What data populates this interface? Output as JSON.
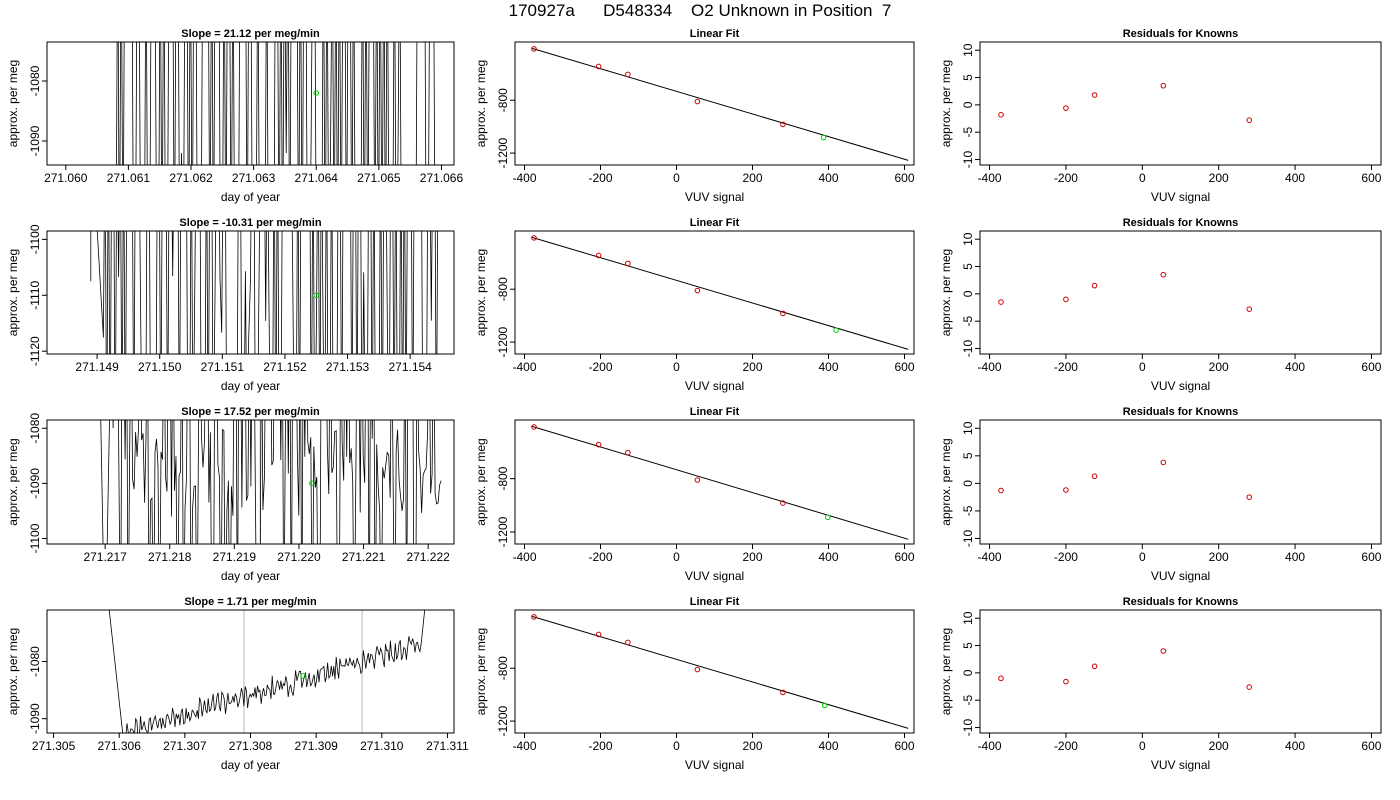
{
  "page": {
    "title": "170927a      D548334    O2 Unknown in Position  7"
  },
  "chart_data": [
    {
      "type": "line",
      "panel": "time-series-1",
      "title": "Slope =  21.12  per meg/min",
      "xlabel": "day of year",
      "ylabel": "approx. per meg",
      "xlim": [
        271.0597,
        271.0662
      ],
      "ylim": [
        -1094,
        -1073.5
      ],
      "xticks": [
        271.06,
        271.061,
        271.062,
        271.063,
        271.064,
        271.065,
        271.066
      ],
      "xtick_labels": [
        "271.060",
        "271.061",
        "271.062",
        "271.063",
        "271.064",
        "271.065",
        "271.066"
      ],
      "yticks": [
        -1090,
        -1080
      ],
      "ytick_labels": [
        "-1090",
        "-1080"
      ],
      "mean_point": {
        "x": 271.064,
        "y": -1082
      },
      "vlines": []
    },
    {
      "type": "scatter",
      "panel": "linear-fit-1",
      "title": "Linear Fit",
      "xlabel": "VUV signal",
      "ylabel": "approx. per meg",
      "xlim": [
        -425,
        625
      ],
      "ylim": [
        -1290,
        -360
      ],
      "xticks": [
        -400,
        -200,
        0,
        200,
        400,
        600
      ],
      "xtick_labels": [
        "-400",
        "-200",
        "0",
        "200",
        "400",
        "600"
      ],
      "yticks": [
        -1200,
        -800
      ],
      "ytick_labels": [
        "-1200",
        "-800"
      ],
      "knowns_x": [
        -375,
        -205,
        -128,
        55,
        280
      ],
      "knowns_y": [
        -412,
        -545,
        -605,
        -810,
        -983
      ],
      "fit_line": {
        "x": [
          -380,
          610
        ],
        "y": [
          -408,
          -1255
        ]
      },
      "unknown": {
        "x": 387,
        "y": -1082
      }
    },
    {
      "type": "scatter",
      "panel": "residuals-1",
      "title": "Residuals for Knowns",
      "xlabel": "VUV signal",
      "ylabel": "approx. per meg",
      "xlim": [
        -425,
        625
      ],
      "ylim": [
        -11,
        11.5
      ],
      "xticks": [
        -400,
        -200,
        0,
        200,
        400,
        600
      ],
      "xtick_labels": [
        "-400",
        "-200",
        "0",
        "200",
        "400",
        "600"
      ],
      "yticks": [
        -10,
        -5,
        0,
        5,
        10
      ],
      "ytick_labels": [
        "-10",
        "-5",
        "0",
        "5",
        "10"
      ],
      "x": [
        -370,
        -200,
        -125,
        55,
        280
      ],
      "y": [
        -1.8,
        -0.6,
        1.8,
        3.5,
        -2.8
      ]
    },
    {
      "type": "line",
      "panel": "time-series-2",
      "title": "Slope =  -10.31  per meg/min",
      "xlabel": "day of year",
      "ylabel": "approx. per meg",
      "xlim": [
        271.1482,
        271.1547
      ],
      "ylim": [
        -1120.5,
        -1098.5
      ],
      "xticks": [
        271.149,
        271.15,
        271.151,
        271.152,
        271.153,
        271.154
      ],
      "xtick_labels": [
        "271.149",
        "271.150",
        "271.151",
        "271.152",
        "271.153",
        "271.154"
      ],
      "yticks": [
        -1120,
        -1110,
        -1100
      ],
      "ytick_labels": [
        "-1120",
        "-1110",
        "-1100"
      ],
      "mean_point": {
        "x": 271.1525,
        "y": -1110
      },
      "vlines": []
    },
    {
      "type": "scatter",
      "panel": "linear-fit-2",
      "title": "Linear Fit",
      "xlabel": "VUV signal",
      "ylabel": "approx. per meg",
      "xlim": [
        -425,
        625
      ],
      "ylim": [
        -1290,
        -360
      ],
      "xticks": [
        -400,
        -200,
        0,
        200,
        400,
        600
      ],
      "xtick_labels": [
        "-400",
        "-200",
        "0",
        "200",
        "400",
        "600"
      ],
      "yticks": [
        -1200,
        -800
      ],
      "ytick_labels": [
        "-1200",
        "-800"
      ],
      "knowns_x": [
        -375,
        -205,
        -128,
        55,
        280
      ],
      "knowns_y": [
        -412,
        -545,
        -605,
        -810,
        -983
      ],
      "fit_line": {
        "x": [
          -380,
          610
        ],
        "y": [
          -408,
          -1255
        ]
      },
      "unknown": {
        "x": 420,
        "y": -1110
      }
    },
    {
      "type": "scatter",
      "panel": "residuals-2",
      "title": "Residuals for Knowns",
      "xlabel": "VUV signal",
      "ylabel": "approx. per meg",
      "xlim": [
        -425,
        625
      ],
      "ylim": [
        -11,
        11.5
      ],
      "xticks": [
        -400,
        -200,
        0,
        200,
        400,
        600
      ],
      "xtick_labels": [
        "-400",
        "-200",
        "0",
        "200",
        "400",
        "600"
      ],
      "yticks": [
        -10,
        -5,
        0,
        5,
        10
      ],
      "ytick_labels": [
        "-10",
        "-5",
        "0",
        "5",
        "10"
      ],
      "x": [
        -370,
        -200,
        -125,
        55,
        280
      ],
      "y": [
        -1.5,
        -1.0,
        1.5,
        3.5,
        -2.8
      ]
    },
    {
      "type": "line",
      "panel": "time-series-3",
      "title": "Slope =  17.52  per meg/min",
      "xlabel": "day of year",
      "ylabel": "approx. per meg",
      "xlim": [
        271.2161,
        271.2224
      ],
      "ylim": [
        -1101,
        -1078.5
      ],
      "xticks": [
        271.217,
        271.218,
        271.219,
        271.22,
        271.221,
        271.222
      ],
      "xtick_labels": [
        "271.217",
        "271.218",
        "271.219",
        "271.220",
        "271.221",
        "271.222"
      ],
      "yticks": [
        -1100,
        -1090,
        -1080
      ],
      "ytick_labels": [
        "-1100",
        "-1090",
        "-1080"
      ],
      "mean_point": {
        "x": 271.2202,
        "y": -1090
      },
      "vlines": [
        271.2194
      ]
    },
    {
      "type": "scatter",
      "panel": "linear-fit-3",
      "title": "Linear Fit",
      "xlabel": "VUV signal",
      "ylabel": "approx. per meg",
      "xlim": [
        -425,
        625
      ],
      "ylim": [
        -1290,
        -360
      ],
      "xticks": [
        -400,
        -200,
        0,
        200,
        400,
        600
      ],
      "xtick_labels": [
        "-400",
        "-200",
        "0",
        "200",
        "400",
        "600"
      ],
      "yticks": [
        -1200,
        -800
      ],
      "ytick_labels": [
        "-1200",
        "-800"
      ],
      "knowns_x": [
        -375,
        -205,
        -128,
        55,
        280
      ],
      "knowns_y": [
        -412,
        -545,
        -605,
        -810,
        -983
      ],
      "fit_line": {
        "x": [
          -380,
          610
        ],
        "y": [
          -408,
          -1255
        ]
      },
      "unknown": {
        "x": 398,
        "y": -1090
      }
    },
    {
      "type": "scatter",
      "panel": "residuals-3",
      "title": "Residuals for Knowns",
      "xlabel": "VUV signal",
      "ylabel": "approx. per meg",
      "xlim": [
        -425,
        625
      ],
      "ylim": [
        -11,
        11.5
      ],
      "xticks": [
        -400,
        -200,
        0,
        200,
        400,
        600
      ],
      "xtick_labels": [
        "-400",
        "-200",
        "0",
        "200",
        "400",
        "600"
      ],
      "yticks": [
        -10,
        -5,
        0,
        5,
        10
      ],
      "ytick_labels": [
        "-10",
        "-5",
        "0",
        "5",
        "10"
      ],
      "x": [
        -370,
        -200,
        -125,
        55,
        280
      ],
      "y": [
        -1.3,
        -1.2,
        1.3,
        3.8,
        -2.5
      ]
    },
    {
      "type": "line",
      "panel": "time-series-4",
      "title": "Slope =  1.71  per meg/min",
      "xlabel": "day of year",
      "ylabel": "approx. per meg",
      "xlim": [
        271.3049,
        271.3111
      ],
      "ylim": [
        -1092.5,
        -1071
      ],
      "xticks": [
        271.305,
        271.306,
        271.307,
        271.308,
        271.309,
        271.31,
        271.311
      ],
      "xtick_labels": [
        "271.305",
        "271.306",
        "271.307",
        "271.308",
        "271.309",
        "271.310",
        "271.311"
      ],
      "yticks": [
        -1090,
        -1080
      ],
      "ytick_labels": [
        "-1090",
        "-1080"
      ],
      "mean_point": {
        "x": 271.3088,
        "y": -1082.5
      },
      "vlines": [
        271.3079,
        271.3097
      ]
    },
    {
      "type": "scatter",
      "panel": "linear-fit-4",
      "title": "Linear Fit",
      "xlabel": "VUV signal",
      "ylabel": "approx. per meg",
      "xlim": [
        -425,
        625
      ],
      "ylim": [
        -1290,
        -360
      ],
      "xticks": [
        -400,
        -200,
        0,
        200,
        400,
        600
      ],
      "xtick_labels": [
        "-400",
        "-200",
        "0",
        "200",
        "400",
        "600"
      ],
      "yticks": [
        -1200,
        -800
      ],
      "ytick_labels": [
        "-1200",
        "-800"
      ],
      "knowns_x": [
        -375,
        -205,
        -128,
        55,
        280
      ],
      "knowns_y": [
        -412,
        -545,
        -605,
        -810,
        -983
      ],
      "fit_line": {
        "x": [
          -380,
          610
        ],
        "y": [
          -408,
          -1255
        ]
      },
      "unknown": {
        "x": 390,
        "y": -1082
      }
    },
    {
      "type": "scatter",
      "panel": "residuals-4",
      "title": "Residuals for Knowns",
      "xlabel": "VUV signal",
      "ylabel": "approx. per meg",
      "xlim": [
        -425,
        625
      ],
      "ylim": [
        -11,
        11.5
      ],
      "xticks": [
        -400,
        -200,
        0,
        200,
        400,
        600
      ],
      "xtick_labels": [
        "-400",
        "-200",
        "0",
        "200",
        "400",
        "600"
      ],
      "yticks": [
        -10,
        -5,
        0,
        5,
        10
      ],
      "ytick_labels": [
        "-10",
        "-5",
        "0",
        "5",
        "10"
      ],
      "x": [
        -370,
        -200,
        -125,
        55,
        280
      ],
      "y": [
        -1.0,
        -1.6,
        1.2,
        4.0,
        -2.6
      ]
    }
  ],
  "colors": {
    "axes": "#000000",
    "line": "#000000",
    "knowns": "#cc0000",
    "unknown": "#00cc00",
    "vline": "#bbbbbb"
  }
}
